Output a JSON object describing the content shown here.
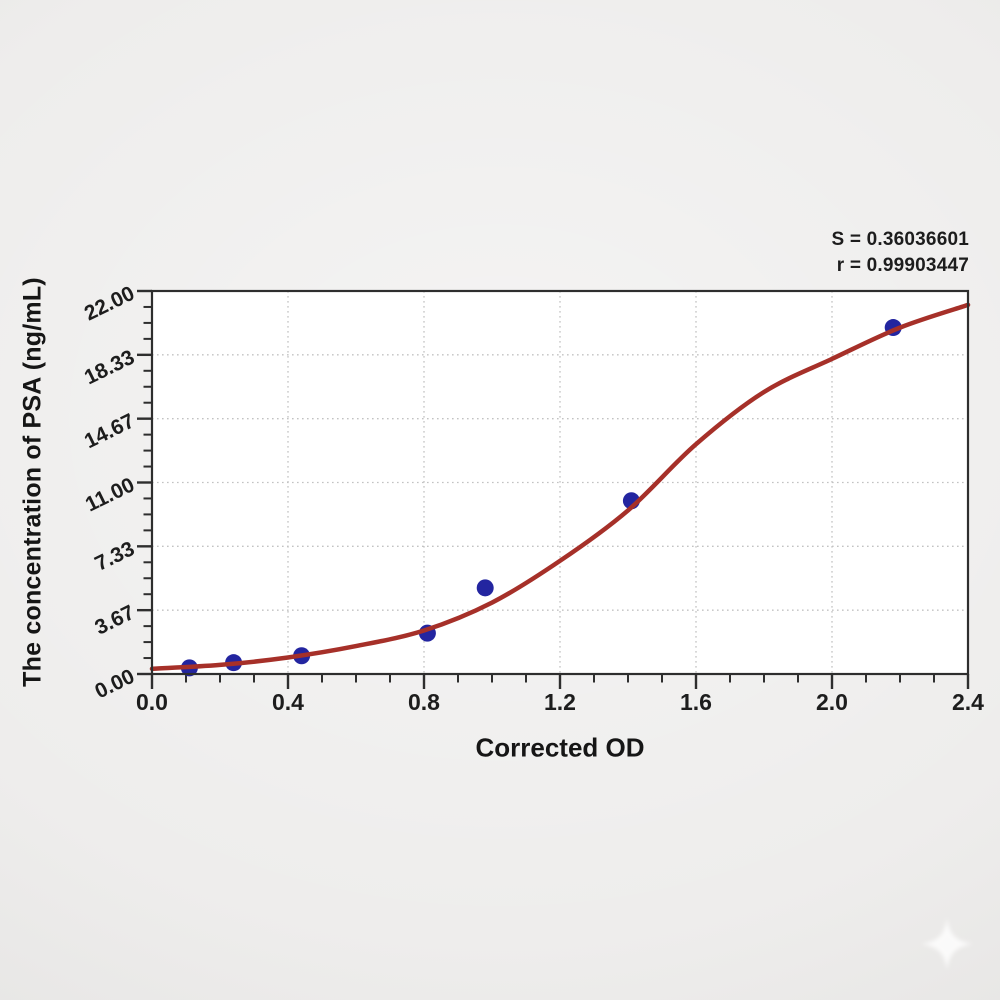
{
  "stats": {
    "s_line": "S = 0.36036601",
    "r_line": "r = 0.99903447"
  },
  "chart_data": {
    "type": "scatter",
    "title": "",
    "xlabel": "Corrected OD",
    "ylabel": "The concentration of PSA (ng/mL)",
    "xlim": [
      0,
      2.4
    ],
    "ylim": [
      0,
      22
    ],
    "grid": true,
    "grid_style": "dotted",
    "legend": false,
    "annotations": [
      "S = 0.36036601",
      "r = 0.99903447"
    ],
    "x_ticks": {
      "major": [
        0.0,
        0.4,
        0.8,
        1.2,
        1.6,
        2.0,
        2.4
      ],
      "labels": [
        "0.0",
        "0.4",
        "0.8",
        "1.2",
        "1.6",
        "2.0",
        "2.4"
      ],
      "minor_step": 0.1
    },
    "y_ticks": {
      "major": [
        0,
        3.6667,
        7.3333,
        11,
        14.6667,
        18.3333,
        22
      ],
      "labels": [
        "0.00",
        "3.67",
        "7.33",
        "11.00",
        "14.67",
        "18.33",
        "22.00"
      ],
      "minor_per_major": 4
    },
    "series": [
      {
        "name": "standard-points",
        "kind": "scatter",
        "color": "#2325a0",
        "marker": "circle",
        "points": [
          [
            0.11,
            0.35
          ],
          [
            0.24,
            0.65
          ],
          [
            0.44,
            1.05
          ],
          [
            0.81,
            2.35
          ],
          [
            0.98,
            4.95
          ],
          [
            1.41,
            9.95
          ],
          [
            2.18,
            19.9
          ]
        ]
      },
      {
        "name": "4pl-fit-curve",
        "kind": "line",
        "color": "#a63029",
        "points": [
          [
            0.0,
            0.3
          ],
          [
            0.2,
            0.52
          ],
          [
            0.4,
            0.95
          ],
          [
            0.6,
            1.6
          ],
          [
            0.8,
            2.5
          ],
          [
            1.0,
            4.1
          ],
          [
            1.2,
            6.5
          ],
          [
            1.4,
            9.4
          ],
          [
            1.6,
            13.2
          ],
          [
            1.8,
            16.2
          ],
          [
            2.0,
            18.1
          ],
          [
            2.2,
            19.9
          ],
          [
            2.4,
            21.2
          ]
        ]
      }
    ]
  },
  "colors": {
    "background": "#eeedec",
    "plot_background": "#ffffff",
    "frame": "#2e2e2e",
    "grid": "#c2c2c2",
    "curve": "#a63029",
    "points": "#2325a0",
    "text": "#1d1d1d"
  },
  "watermark": {
    "icon": "sparkle-star",
    "color": "#ffffff"
  }
}
